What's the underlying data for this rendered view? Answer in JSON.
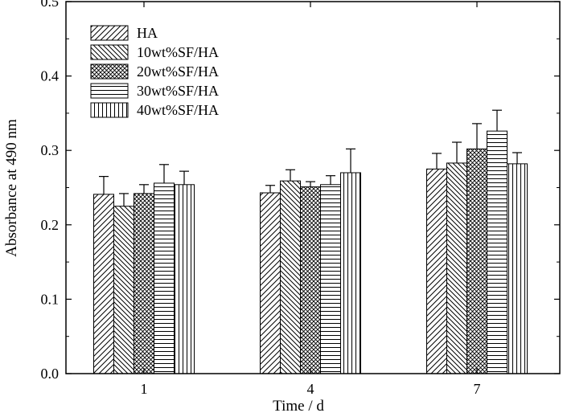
{
  "chart_data": {
    "type": "bar",
    "xlabel": "Time / d",
    "ylabel": "Absorbance at 490 nm",
    "ylim": [
      0,
      0.5
    ],
    "yticks": [
      "0.0",
      "0.1",
      "0.2",
      "0.3",
      "0.4",
      "0.5"
    ],
    "categories": [
      "1",
      "4",
      "7"
    ],
    "grid": false,
    "legend_position": "top-left",
    "error_bars": "positive",
    "series": [
      {
        "name": "HA",
        "values": [
          0.241,
          0.243,
          0.275
        ],
        "errors": [
          0.024,
          0.01,
          0.021
        ],
        "pattern": "diag-up"
      },
      {
        "name": "10wt%SF/HA",
        "values": [
          0.225,
          0.259,
          0.283
        ],
        "errors": [
          0.017,
          0.015,
          0.028
        ],
        "pattern": "diag-down"
      },
      {
        "name": "20wt%SF/HA",
        "values": [
          0.242,
          0.251,
          0.302
        ],
        "errors": [
          0.012,
          0.007,
          0.034
        ],
        "pattern": "crosshatch"
      },
      {
        "name": "30wt%SF/HA",
        "values": [
          0.256,
          0.254,
          0.326
        ],
        "errors": [
          0.025,
          0.012,
          0.028
        ],
        "pattern": "horizontal"
      },
      {
        "name": "40wt%SF/HA",
        "values": [
          0.254,
          0.27,
          0.282
        ],
        "errors": [
          0.018,
          0.032,
          0.015
        ],
        "pattern": "vertical"
      }
    ]
  }
}
